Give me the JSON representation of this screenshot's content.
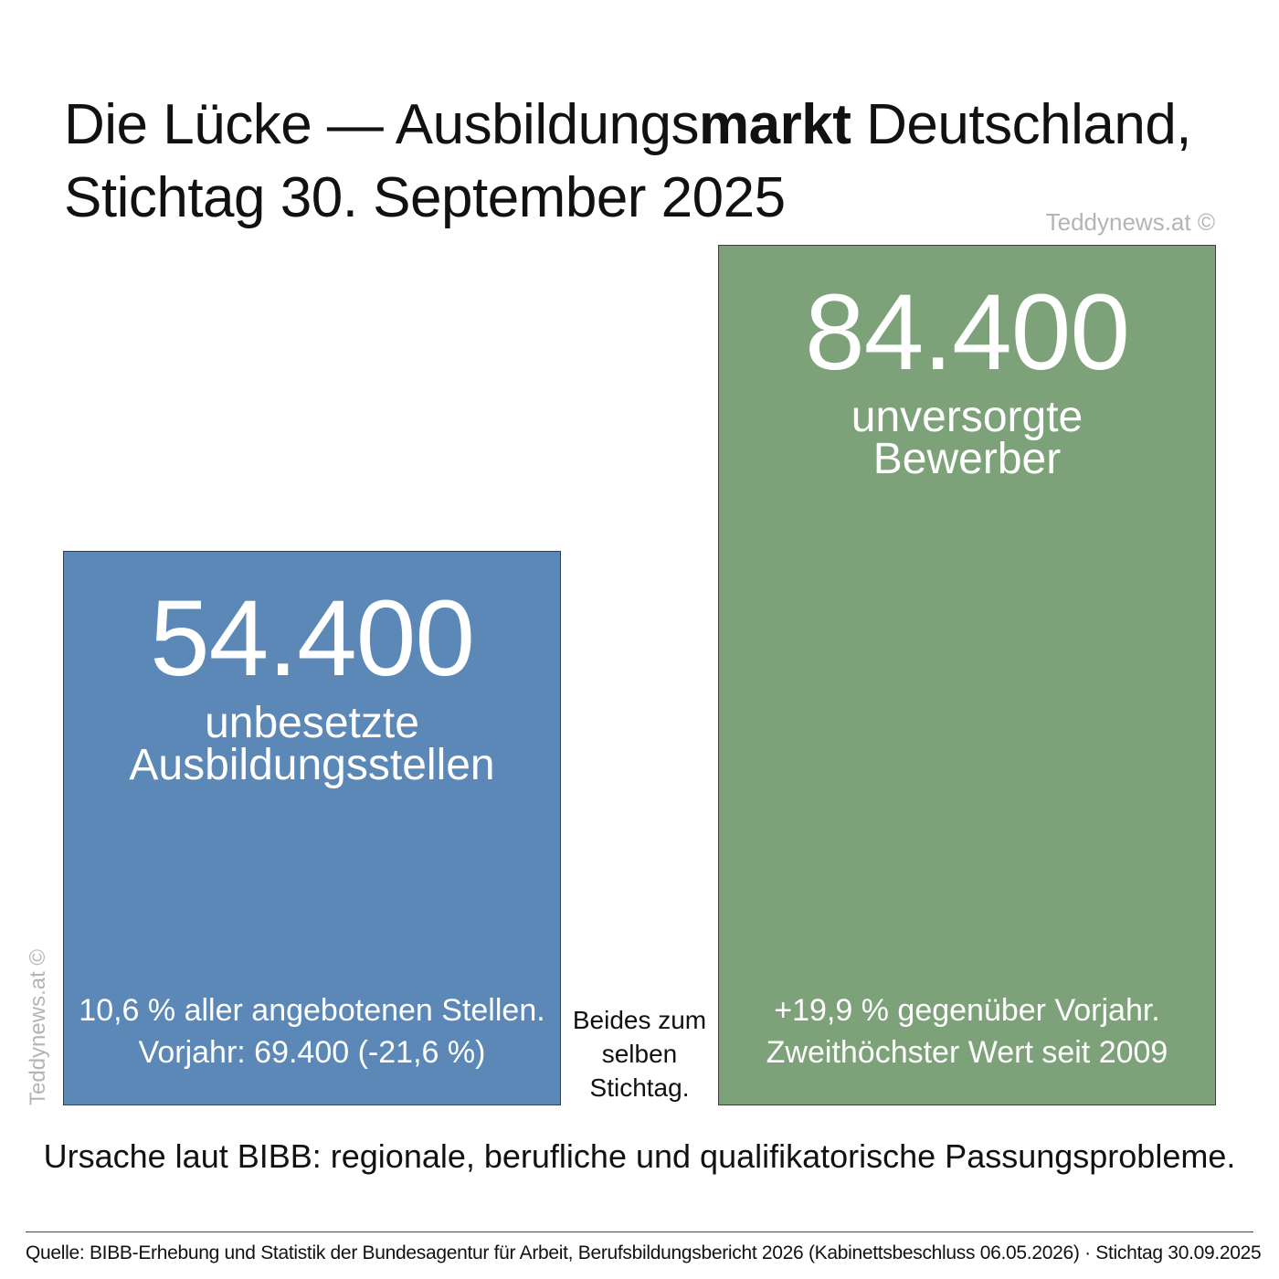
{
  "title": {
    "part1": "Die Lücke — Ausbildungs",
    "part_bold": "markt",
    "part2": " Deutschland,",
    "line2": "Stichtag 30. September 2025"
  },
  "watermark": {
    "top": "Teddynews.at ©",
    "side": "Teddynews.at ©"
  },
  "middle_note": {
    "line1": "Beides zum",
    "line2": "selben",
    "line3": "Stichtag."
  },
  "cause": "Ursache laut BIBB: regionale, berufliche und qualifikatorische Passungsprobleme.",
  "source": "Quelle: BIBB-Erhebung und Statistik der Bundesagentur für Arbeit, Berufsbildungsbericht 2026 (Kabinettsbeschluss 06.05.2026) · Stichtag 30.09.2025",
  "colors": {
    "blue": "#5b88b6",
    "green": "#7da27a"
  },
  "chart_data": {
    "type": "bar",
    "categories": [
      "unbesetzte Ausbildungsstellen",
      "unversorgte Bewerber"
    ],
    "values": [
      54400,
      84400
    ],
    "value_labels": [
      "54.400",
      "84.400"
    ],
    "bars": [
      {
        "value_label": "54.400",
        "label_line1": "unbesetzte",
        "label_line2": "Ausbildungsstellen",
        "note_line1": "10,6 % aller angebotenen Stellen.",
        "note_line2": "Vorjahr: 69.400 (-21,6 %)",
        "color": "#5b88b6"
      },
      {
        "value_label": "84.400",
        "label_line1": "unversorgte",
        "label_line2": "Bewerber",
        "note_line1": "+19,9 % gegenüber Vorjahr.",
        "note_line2": "Zweithöchster Wert seit 2009",
        "color": "#7da27a"
      }
    ],
    "title": "Die Lücke — Ausbildungsmarkt Deutschland, Stichtag 30. September 2025",
    "xlabel": "",
    "ylabel": "",
    "grid": false,
    "legend": "none"
  }
}
